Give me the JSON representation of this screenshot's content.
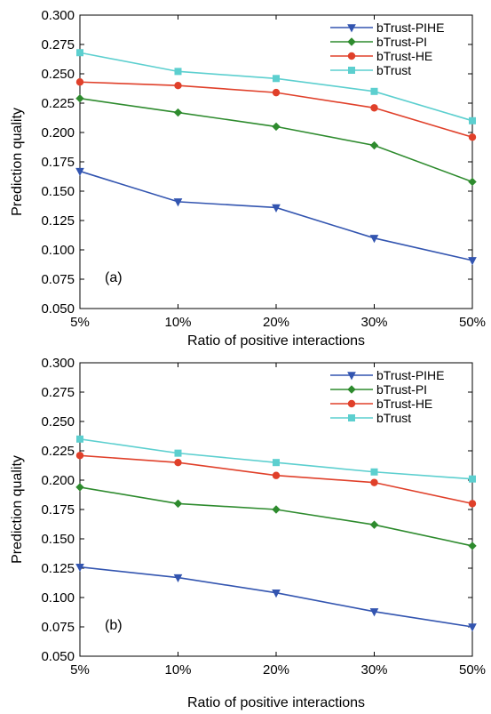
{
  "colors": {
    "bTrust-PIHE": "#3355b0",
    "bTrust-PI": "#2e8b2e",
    "bTrust-HE": "#e0402a",
    "bTrust": "#5ccfcf"
  },
  "chart_data": [
    {
      "type": "line",
      "panel_label": "(a)",
      "xlabel": "Ratio of positive interactions",
      "ylabel": "Prediction quality",
      "categories": [
        "5%",
        "10%",
        "20%",
        "30%",
        "50%"
      ],
      "ylim": [
        0.05,
        0.3
      ],
      "yticks": [
        "0.050",
        "0.075",
        "0.100",
        "0.125",
        "0.150",
        "0.175",
        "0.200",
        "0.225",
        "0.250",
        "0.275",
        "0.300"
      ],
      "grid": false,
      "legend_position": "top-right",
      "series": [
        {
          "name": "bTrust-PIHE",
          "marker": "triangle-down",
          "values": [
            0.167,
            0.141,
            0.136,
            0.11,
            0.091
          ]
        },
        {
          "name": "bTrust-PI",
          "marker": "diamond",
          "values": [
            0.229,
            0.217,
            0.205,
            0.189,
            0.158
          ]
        },
        {
          "name": "bTrust-HE",
          "marker": "circle",
          "values": [
            0.243,
            0.24,
            0.234,
            0.221,
            0.196
          ]
        },
        {
          "name": "bTrust",
          "marker": "square",
          "values": [
            0.268,
            0.252,
            0.246,
            0.235,
            0.21
          ]
        }
      ]
    },
    {
      "type": "line",
      "panel_label": "(b)",
      "xlabel": "Ratio of positive interactions",
      "ylabel": "Prediction quality",
      "categories": [
        "5%",
        "10%",
        "20%",
        "30%",
        "50%"
      ],
      "ylim": [
        0.05,
        0.3
      ],
      "yticks": [
        "0.050",
        "0.075",
        "0.100",
        "0.125",
        "0.150",
        "0.175",
        "0.200",
        "0.225",
        "0.250",
        "0.275",
        "0.300"
      ],
      "grid": false,
      "legend_position": "top-right",
      "series": [
        {
          "name": "bTrust-PIHE",
          "marker": "triangle-down",
          "values": [
            0.126,
            0.117,
            0.104,
            0.088,
            0.075
          ]
        },
        {
          "name": "bTrust-PI",
          "marker": "diamond",
          "values": [
            0.194,
            0.18,
            0.175,
            0.162,
            0.144
          ]
        },
        {
          "name": "bTrust-HE",
          "marker": "circle",
          "values": [
            0.221,
            0.215,
            0.204,
            0.198,
            0.18
          ]
        },
        {
          "name": "bTrust",
          "marker": "square",
          "values": [
            0.235,
            0.223,
            0.215,
            0.207,
            0.201
          ]
        }
      ]
    }
  ]
}
